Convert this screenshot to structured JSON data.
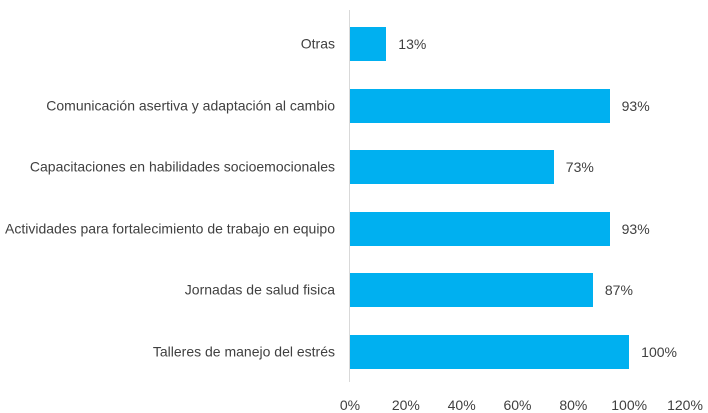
{
  "chart_data": {
    "type": "barh",
    "categories": [
      "Otras",
      "Comunicación asertiva y adaptación al cambio",
      "Capacitaciones en habilidades socioemocionales",
      "Actividades para fortalecimiento de trabajo en equipo",
      "Jornadas de salud fisica",
      "Talleres de manejo del estrés"
    ],
    "values": [
      13,
      93,
      73,
      93,
      87,
      100
    ],
    "value_labels": [
      "13%",
      "93%",
      "73%",
      "93%",
      "87%",
      "100%"
    ],
    "color": "#00b0f0",
    "xlim": [
      0,
      120
    ],
    "xticks": [
      {
        "value": 0,
        "label": "0%"
      },
      {
        "value": 20,
        "label": "20%"
      },
      {
        "value": 40,
        "label": "40%"
      },
      {
        "value": 60,
        "label": "60%"
      },
      {
        "value": 80,
        "label": "80%"
      },
      {
        "value": 100,
        "label": "100%"
      },
      {
        "value": 120,
        "label": "120%"
      }
    ],
    "grid": false
  }
}
